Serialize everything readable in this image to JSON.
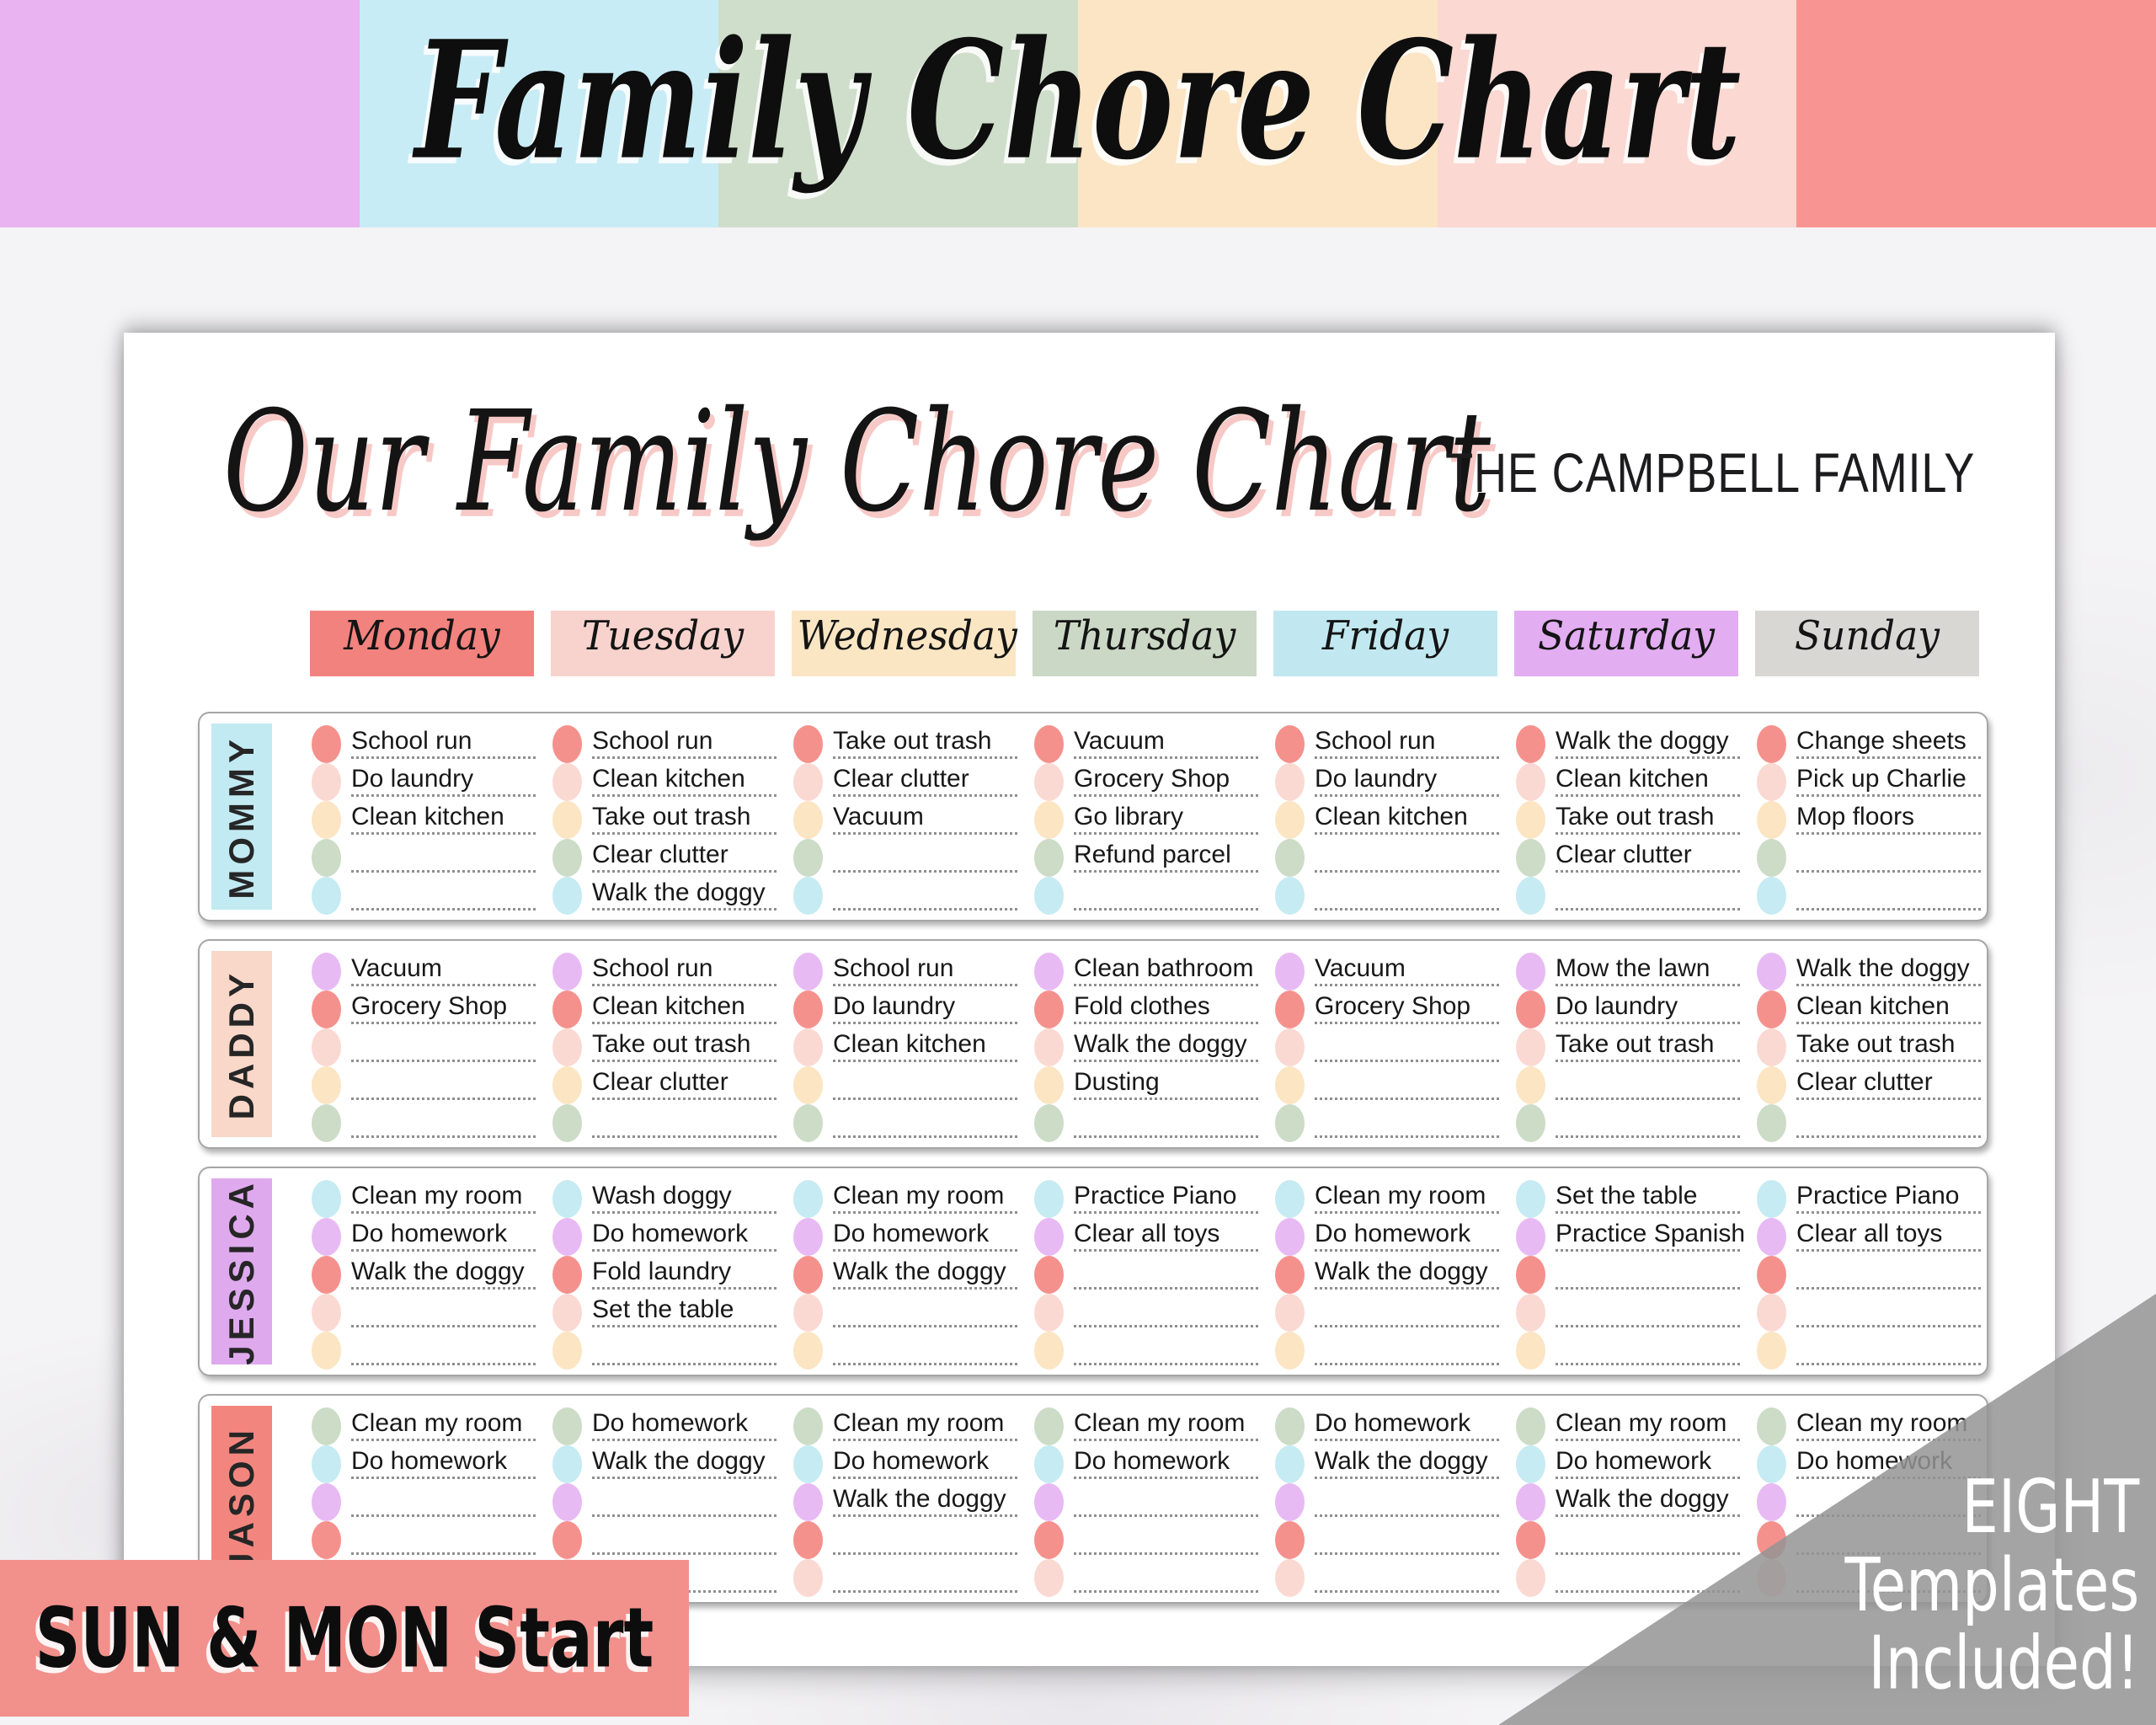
{
  "banner": {
    "title": "Family Chore Chart",
    "stripe_colors": [
      "#e9b2f0",
      "#c8ecf5",
      "#cfdeca",
      "#fbe5c5",
      "#fbd8d2",
      "#f89592"
    ]
  },
  "chart": {
    "title": "Our Family Chore Chart",
    "family_name": "THE CAMPBELL FAMILY",
    "days": [
      {
        "label": "Monday",
        "color": "#f2827e"
      },
      {
        "label": "Tuesday",
        "color": "#f8d3cd"
      },
      {
        "label": "Wednesday",
        "color": "#fbe6c4"
      },
      {
        "label": "Thursday",
        "color": "#cad8c5"
      },
      {
        "label": "Friday",
        "color": "#c1e8f0"
      },
      {
        "label": "Saturday",
        "color": "#e3adf2"
      },
      {
        "label": "Sunday",
        "color": "#d8d7d4"
      }
    ],
    "members": [
      {
        "name": "MOMMY",
        "label_color": "#c2eaf2",
        "dot_colors": [
          "#f5918d",
          "#fbd9d3",
          "#fbe5c3",
          "#ccdcc7",
          "#c6ebf2"
        ],
        "chores": [
          [
            "School run",
            "Do laundry",
            "Clean kitchen",
            "",
            ""
          ],
          [
            "School run",
            "Clean kitchen",
            "Take out trash",
            "Clear clutter",
            "Walk the doggy"
          ],
          [
            "Take out trash",
            "Clear clutter",
            "Vacuum",
            "",
            ""
          ],
          [
            "Vacuum",
            "Grocery Shop",
            "Go library",
            "Refund parcel",
            ""
          ],
          [
            "School run",
            "Do laundry",
            "Clean kitchen",
            "",
            ""
          ],
          [
            "Walk the doggy",
            "Clean kitchen",
            "Take out trash",
            "Clear clutter",
            ""
          ],
          [
            "Change sheets",
            "Pick up Charlie",
            "Mop floors",
            "",
            ""
          ]
        ]
      },
      {
        "name": "DADDY",
        "label_color": "#f9d7c9",
        "dot_colors": [
          "#e8baf4",
          "#f5918d",
          "#fbd9d3",
          "#fbe5c3",
          "#ccdcc7"
        ],
        "chores": [
          [
            "Vacuum",
            "Grocery Shop",
            "",
            "",
            ""
          ],
          [
            "School run",
            "Clean kitchen",
            "Take out trash",
            "Clear clutter",
            ""
          ],
          [
            "School run",
            "Do laundry",
            "Clean kitchen",
            "",
            ""
          ],
          [
            "Clean bathroom",
            "Fold clothes",
            "Walk the doggy",
            "Dusting",
            ""
          ],
          [
            "Vacuum",
            "Grocery Shop",
            "",
            "",
            ""
          ],
          [
            "Mow the lawn",
            "Do laundry",
            "Take out trash",
            "",
            ""
          ],
          [
            "Walk the doggy",
            "Clean kitchen",
            "Take out trash",
            "Clear clutter",
            ""
          ]
        ]
      },
      {
        "name": "JESSICA",
        "label_color": "#dfa9ee",
        "dot_colors": [
          "#c6ebf2",
          "#e8baf4",
          "#f5918d",
          "#fbd9d3",
          "#fbe5c3"
        ],
        "chores": [
          [
            "Clean my room",
            "Do homework",
            "Walk the doggy",
            "",
            ""
          ],
          [
            "Wash doggy",
            "Do homework",
            "Fold laundry",
            "Set the table",
            ""
          ],
          [
            "Clean my room",
            "Do homework",
            "Walk the doggy",
            "",
            ""
          ],
          [
            "Practice Piano",
            "Clear all toys",
            "",
            "",
            ""
          ],
          [
            "Clean my room",
            "Do homework",
            "Walk the doggy",
            "",
            ""
          ],
          [
            "Set the table",
            "Practice Spanish",
            "",
            "",
            ""
          ],
          [
            "Practice Piano",
            "Clear all toys",
            "",
            "",
            ""
          ]
        ]
      },
      {
        "name": "JASON",
        "label_color": "#f2867f",
        "dot_colors": [
          "#ccdcc7",
          "#c6ebf2",
          "#e8baf4",
          "#f5918d",
          "#fbd9d3"
        ],
        "chores": [
          [
            "Clean my room",
            "Do homework",
            "",
            "",
            ""
          ],
          [
            "Do homework",
            "Walk the doggy",
            "",
            "",
            ""
          ],
          [
            "Clean my room",
            "Do homework",
            "Walk the doggy",
            "",
            ""
          ],
          [
            "Clean my room",
            "Do homework",
            "",
            "",
            ""
          ],
          [
            "Do homework",
            "Walk the doggy",
            "",
            "",
            ""
          ],
          [
            "Clean my room",
            "Do homework",
            "Walk the doggy",
            "",
            ""
          ],
          [
            "Clean my room",
            "Do homework",
            "",
            "",
            ""
          ]
        ]
      }
    ]
  },
  "footer": {
    "left_banner": "SUN & MON Start",
    "left_banner_color": "#f2908c"
  },
  "overlay": {
    "color": "rgba(148,148,148,0.85)",
    "lines": [
      "EIGHT",
      "Templates",
      "Included!"
    ]
  }
}
